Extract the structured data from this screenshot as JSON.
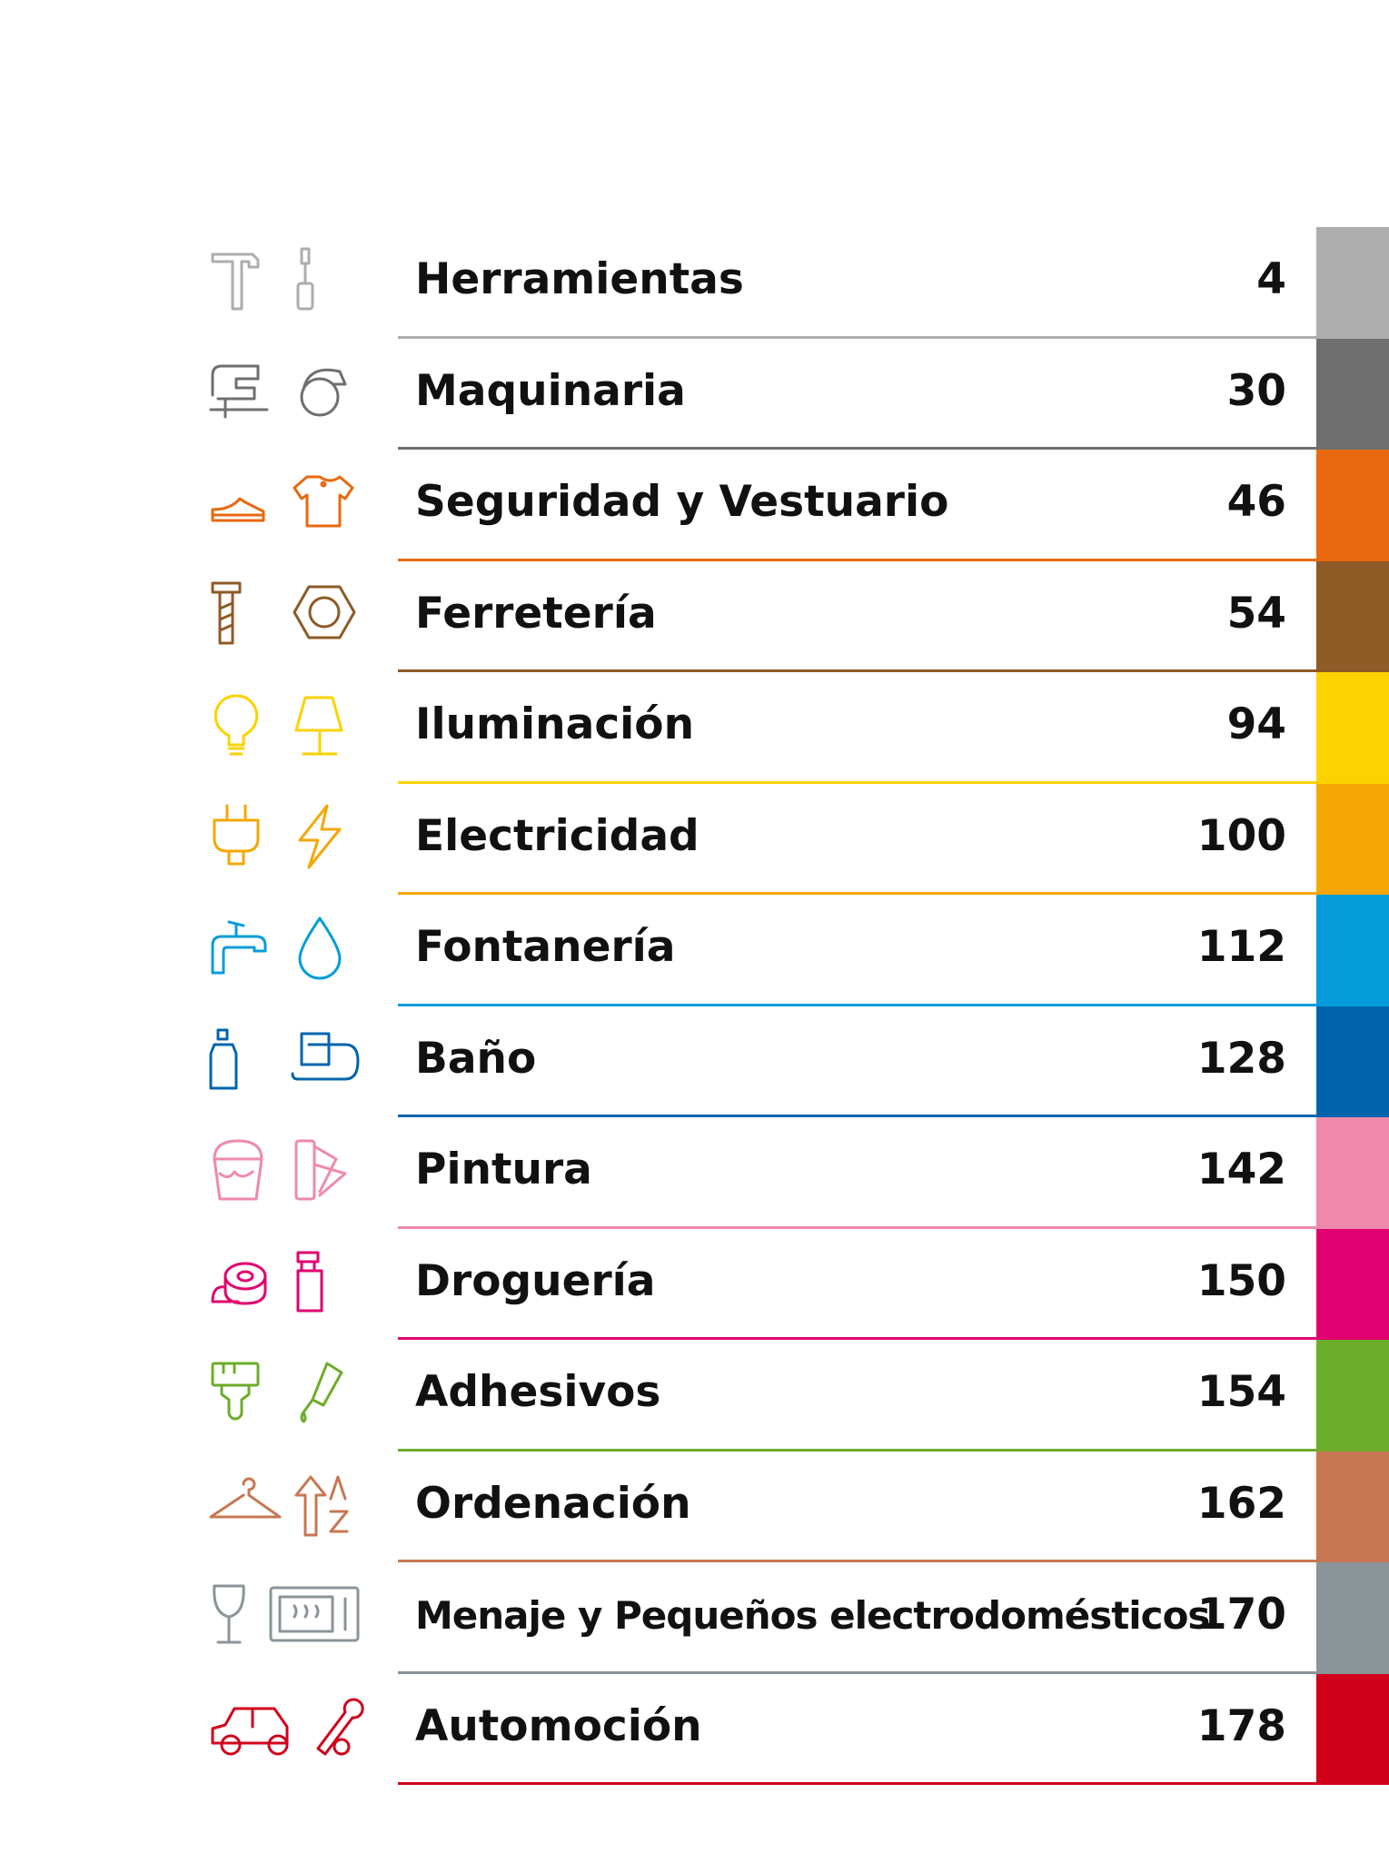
{
  "sections": [
    {
      "title": "Herramientas",
      "page": "4",
      "color": "#adadad",
      "icon_left": "hammer-icon",
      "icon_right": "screwdriver-icon"
    },
    {
      "title": "Maquinaria",
      "page": "30",
      "color": "#6f6f6f",
      "icon_left": "jigsaw-icon",
      "icon_right": "circular-saw-icon"
    },
    {
      "title": "Seguridad y Vestuario",
      "page": "46",
      "color": "#e8690f",
      "icon_left": "safety-shoe-icon",
      "icon_right": "polo-shirt-icon"
    },
    {
      "title": "Ferretería",
      "page": "54",
      "color": "#8e5a25",
      "icon_left": "bolt-icon",
      "icon_right": "nut-icon"
    },
    {
      "title": "Iluminación",
      "page": "94",
      "color": "#fcd200",
      "icon_left": "light-bulb-icon",
      "icon_right": "lamp-icon"
    },
    {
      "title": "Electricidad",
      "page": "100",
      "color": "#f5a705",
      "icon_left": "plug-icon",
      "icon_right": "lightning-icon"
    },
    {
      "title": "Fontanería",
      "page": "112",
      "color": "#069cdb",
      "icon_left": "faucet-icon",
      "icon_right": "water-drop-icon"
    },
    {
      "title": "Baño",
      "page": "128",
      "color": "#0064ad",
      "icon_left": "soap-bottle-icon",
      "icon_right": "towel-holder-icon"
    },
    {
      "title": "Pintura",
      "page": "142",
      "color": "#ef89ab",
      "icon_left": "paint-bucket-icon",
      "icon_right": "color-swatch-icon"
    },
    {
      "title": "Droguería",
      "page": "150",
      "color": "#e1006f",
      "icon_left": "tape-roll-icon",
      "icon_right": "spray-bottle-icon"
    },
    {
      "title": "Adhesivos",
      "page": "154",
      "color": "#6cad2a",
      "icon_left": "brush-icon",
      "icon_right": "glue-tube-icon"
    },
    {
      "title": "Ordenación",
      "page": "162",
      "color": "#c77752",
      "icon_left": "hanger-icon",
      "icon_right": "sort-az-icon"
    },
    {
      "title": "Menaje y Pequeños electrodomésticos",
      "page": "170",
      "color": "#8a9499",
      "icon_left": "wine-glass-icon",
      "icon_right": "microwave-icon"
    },
    {
      "title": "Automoción",
      "page": "178",
      "color": "#d0001b",
      "icon_left": "car-icon",
      "icon_right": "wrench-icon"
    }
  ]
}
